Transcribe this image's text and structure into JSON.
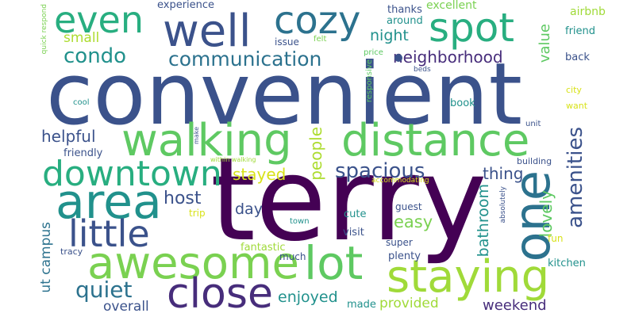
{
  "words": [
    {
      "text": "convenient",
      "color": "#3b528b"
    },
    {
      "text": "terry",
      "color": "#440154"
    },
    {
      "text": "walking",
      "color": "#5ec962"
    },
    {
      "text": "distance",
      "color": "#5ec962"
    },
    {
      "text": "area",
      "color": "#21918c"
    },
    {
      "text": "one",
      "color": "#2c728e"
    },
    {
      "text": "awesome",
      "color": "#7ad151"
    },
    {
      "text": "lot",
      "color": "#5ec962"
    },
    {
      "text": "staying",
      "color": "#a0da39"
    },
    {
      "text": "close",
      "color": "#472d7b"
    },
    {
      "text": "little",
      "color": "#3b528b"
    },
    {
      "text": "downtown",
      "color": "#28ae80"
    },
    {
      "text": "well",
      "color": "#3b528b"
    },
    {
      "text": "even",
      "color": "#28ae80"
    },
    {
      "text": "cozy",
      "color": "#2c728e"
    },
    {
      "text": "spot",
      "color": "#28ae80"
    },
    {
      "text": "condo",
      "color": "#21918c"
    },
    {
      "text": "communication",
      "color": "#2c728e"
    },
    {
      "text": "neighborhood",
      "color": "#472d7b"
    },
    {
      "text": "value",
      "color": "#5ec962"
    },
    {
      "text": "night",
      "color": "#21918c"
    },
    {
      "text": "small",
      "color": "#addc30"
    },
    {
      "text": "spacious",
      "color": "#3b528b"
    },
    {
      "text": "amenities",
      "color": "#3b528b"
    },
    {
      "text": "helpful",
      "color": "#3b528b"
    },
    {
      "text": "stayed",
      "color": "#d8e219"
    },
    {
      "text": "people",
      "color": "#addc30"
    },
    {
      "text": "quiet",
      "color": "#2c728e"
    },
    {
      "text": "host",
      "color": "#3b528b"
    },
    {
      "text": "day",
      "color": "#3b528b"
    },
    {
      "text": "easy",
      "color": "#7ad151"
    },
    {
      "text": "lovely",
      "color": "#5ec962"
    },
    {
      "text": "bathroom",
      "color": "#21918c"
    },
    {
      "text": "thing",
      "color": "#3b528b"
    },
    {
      "text": "enjoyed",
      "color": "#21918c"
    },
    {
      "text": "provided",
      "color": "#a0da39"
    },
    {
      "text": "weekend",
      "color": "#472d7b"
    },
    {
      "text": "overall",
      "color": "#3b528b"
    },
    {
      "text": "ut campus",
      "color": "#2c728e"
    },
    {
      "text": "excellent",
      "color": "#7ad151"
    },
    {
      "text": "experience",
      "color": "#3b528b"
    },
    {
      "text": "thanks",
      "color": "#3b528b"
    },
    {
      "text": "around",
      "color": "#21918c"
    },
    {
      "text": "airbnb",
      "color": "#a0da39"
    },
    {
      "text": "friend",
      "color": "#21918c"
    },
    {
      "text": "back",
      "color": "#3b528b"
    },
    {
      "text": "issue",
      "color": "#3b528b"
    },
    {
      "text": "felt",
      "color": "#7ad151"
    },
    {
      "text": "price",
      "color": "#5ec962"
    },
    {
      "text": "beds",
      "color": "#3b528b"
    },
    {
      "text": "responsive",
      "color": "#5ec962"
    },
    {
      "text": "quick respond",
      "color": "#7ad151"
    },
    {
      "text": "city",
      "color": "#d8e219"
    },
    {
      "text": "want",
      "color": "#d8e219"
    },
    {
      "text": "cool",
      "color": "#21918c"
    },
    {
      "text": "book",
      "color": "#21918c"
    },
    {
      "text": "unit",
      "color": "#3b528b"
    },
    {
      "text": "friendly",
      "color": "#3b528b"
    },
    {
      "text": "make",
      "color": "#3b528b"
    },
    {
      "text": "within walking",
      "color": "#a0da39"
    },
    {
      "text": "building",
      "color": "#3b528b"
    },
    {
      "text": "accommodating",
      "color": "#d8e219"
    },
    {
      "text": "absolutely",
      "color": "#3b528b"
    },
    {
      "text": "guest",
      "color": "#3b528b"
    },
    {
      "text": "cute",
      "color": "#21918c"
    },
    {
      "text": "trip",
      "color": "#d8e219"
    },
    {
      "text": "town",
      "color": "#21918c"
    },
    {
      "text": "visit",
      "color": "#3b528b"
    },
    {
      "text": "fantastic",
      "color": "#a0da39"
    },
    {
      "text": "super",
      "color": "#3b528b"
    },
    {
      "text": "fun",
      "color": "#d8e219"
    },
    {
      "text": "much",
      "color": "#3b528b"
    },
    {
      "text": "plenty",
      "color": "#3b528b"
    },
    {
      "text": "kitchen",
      "color": "#21918c"
    },
    {
      "text": "tracy",
      "color": "#3b528b"
    },
    {
      "text": "made",
      "color": "#21918c"
    }
  ]
}
